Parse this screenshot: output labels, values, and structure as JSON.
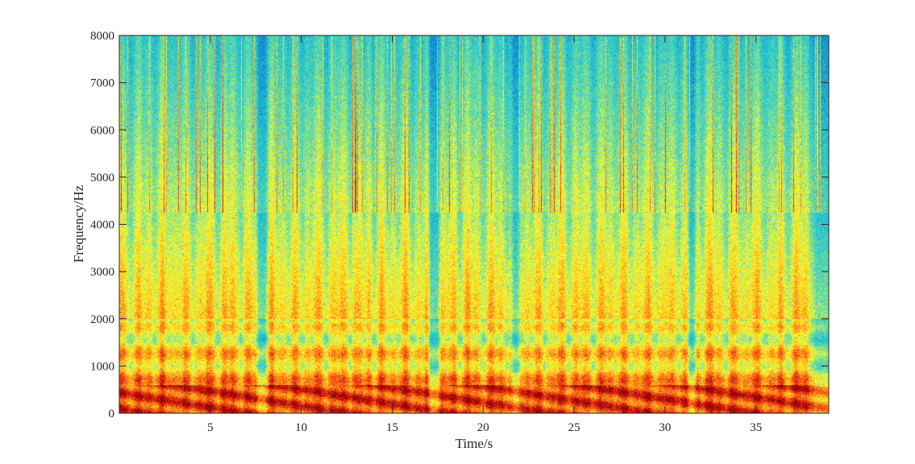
{
  "chart_data": {
    "type": "heatmap",
    "title": "",
    "xlabel": "Time/s",
    "ylabel": "Frequency/Hz",
    "xlim": [
      0,
      39
    ],
    "ylim": [
      0,
      8000
    ],
    "x_ticks": [
      5,
      10,
      15,
      20,
      25,
      30,
      35
    ],
    "y_ticks": [
      0,
      1000,
      2000,
      3000,
      4000,
      5000,
      6000,
      7000,
      8000
    ],
    "grid": false,
    "legend": "none",
    "colormap": [
      "#0f7fd6",
      "#1fb9cf",
      "#3fd4c4",
      "#9fe37a",
      "#ffff2a",
      "#ffb81f",
      "#ff6a14",
      "#d91d0c",
      "#8b0000"
    ],
    "pause_intervals_s": [
      [
        7.6,
        8.1
      ],
      [
        17.0,
        17.6
      ],
      [
        21.6,
        22.0
      ],
      [
        31.3,
        31.7
      ]
    ],
    "low_band_hz": [
      0,
      600
    ],
    "upper_band_split_hz": 4250
  }
}
